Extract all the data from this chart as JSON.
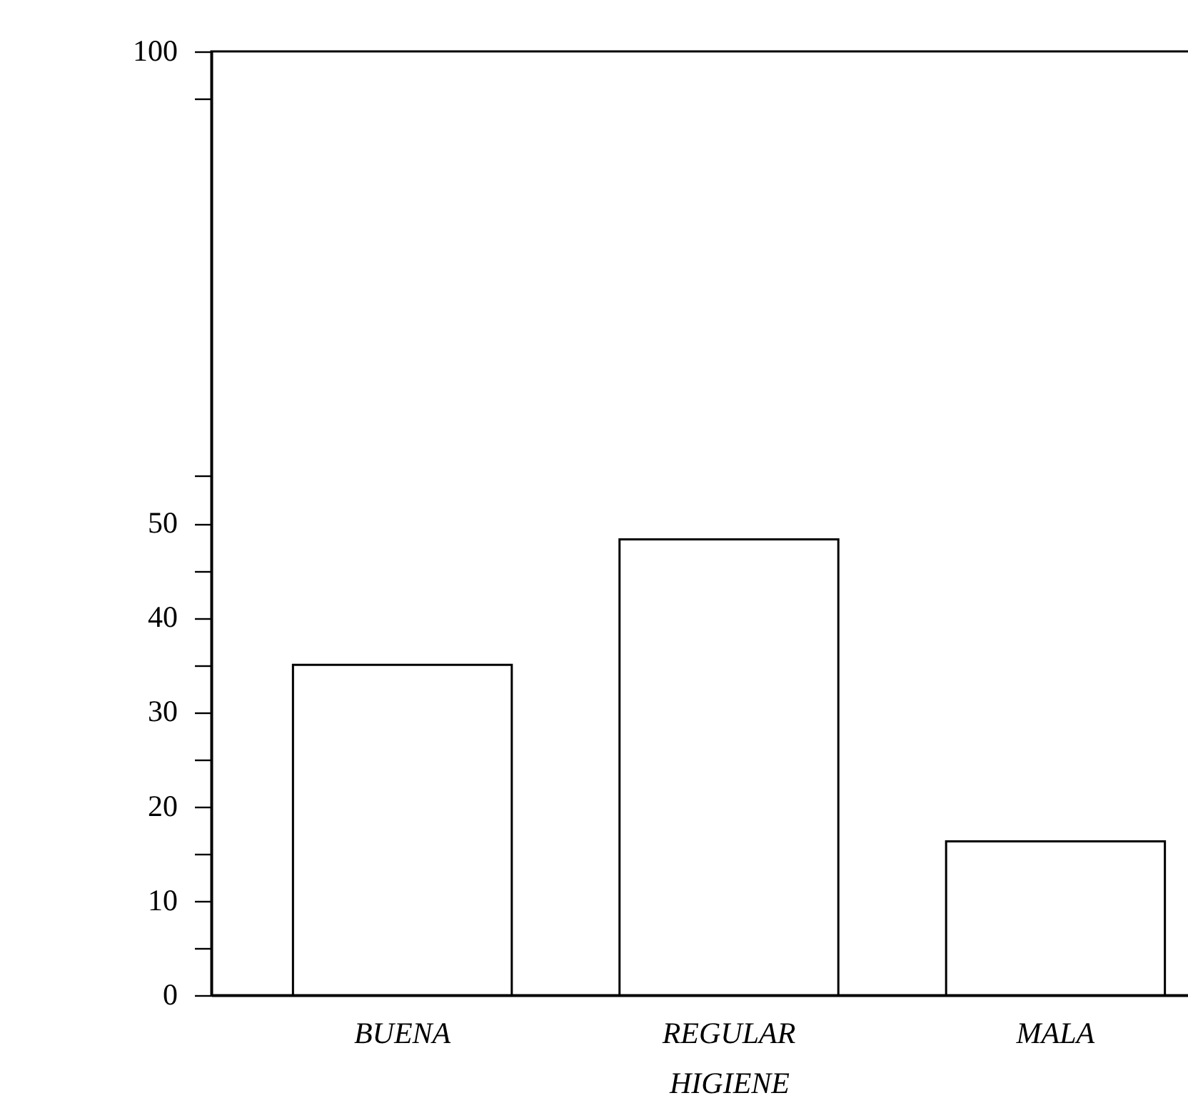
{
  "chart_data": {
    "type": "bar",
    "xlabel": "HIGIENE",
    "categories": [
      "BUENA",
      "REGULAR",
      "MALA"
    ],
    "values": [
      35,
      48.3,
      16.3
    ],
    "color": "#ffffff",
    "ylim": [
      0,
      100
    ],
    "yticks": [
      0,
      {
        "value": 5,
        "label": null
      },
      10,
      {
        "value": 15,
        "label": null
      },
      20,
      {
        "value": 25,
        "label": null
      },
      30,
      {
        "value": 35,
        "label": null
      },
      40,
      {
        "value": 45,
        "label": null
      },
      50,
      {
        "value": 55,
        "label": null
      },
      {
        "value": 95,
        "label": null
      },
      100
    ],
    "grid": false
  }
}
